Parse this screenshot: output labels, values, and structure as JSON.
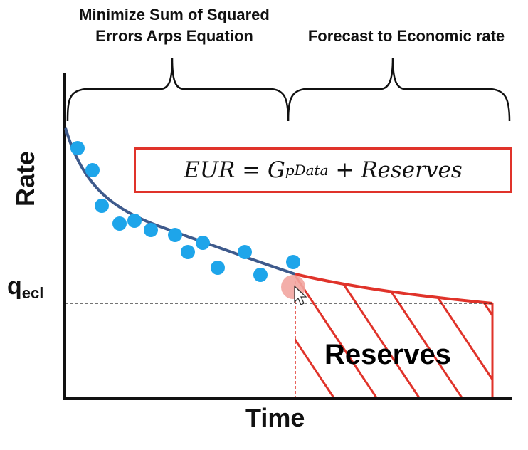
{
  "labels": {
    "top_left_line1": "Minimize Sum of Squared",
    "top_left_line2": "Errors Arps Equation",
    "top_right": "Forecast to Economic rate",
    "ylabel": "Rate",
    "xlabel": "Time",
    "qecl_main": "q",
    "qecl_sub": "ecl",
    "reserves": "Reserves"
  },
  "equation": {
    "lhs": "EUR = G",
    "subscript": "pData",
    "rhs": " + Reserves"
  },
  "colors": {
    "data_points": "#1ea5ea",
    "fit_curve": "#3e5a8c",
    "forecast": "#e0332a",
    "handoff_marker": "#f2a5a0",
    "axis": "#111111"
  },
  "icons": {
    "cursor": "mouse-pointer-icon"
  }
}
